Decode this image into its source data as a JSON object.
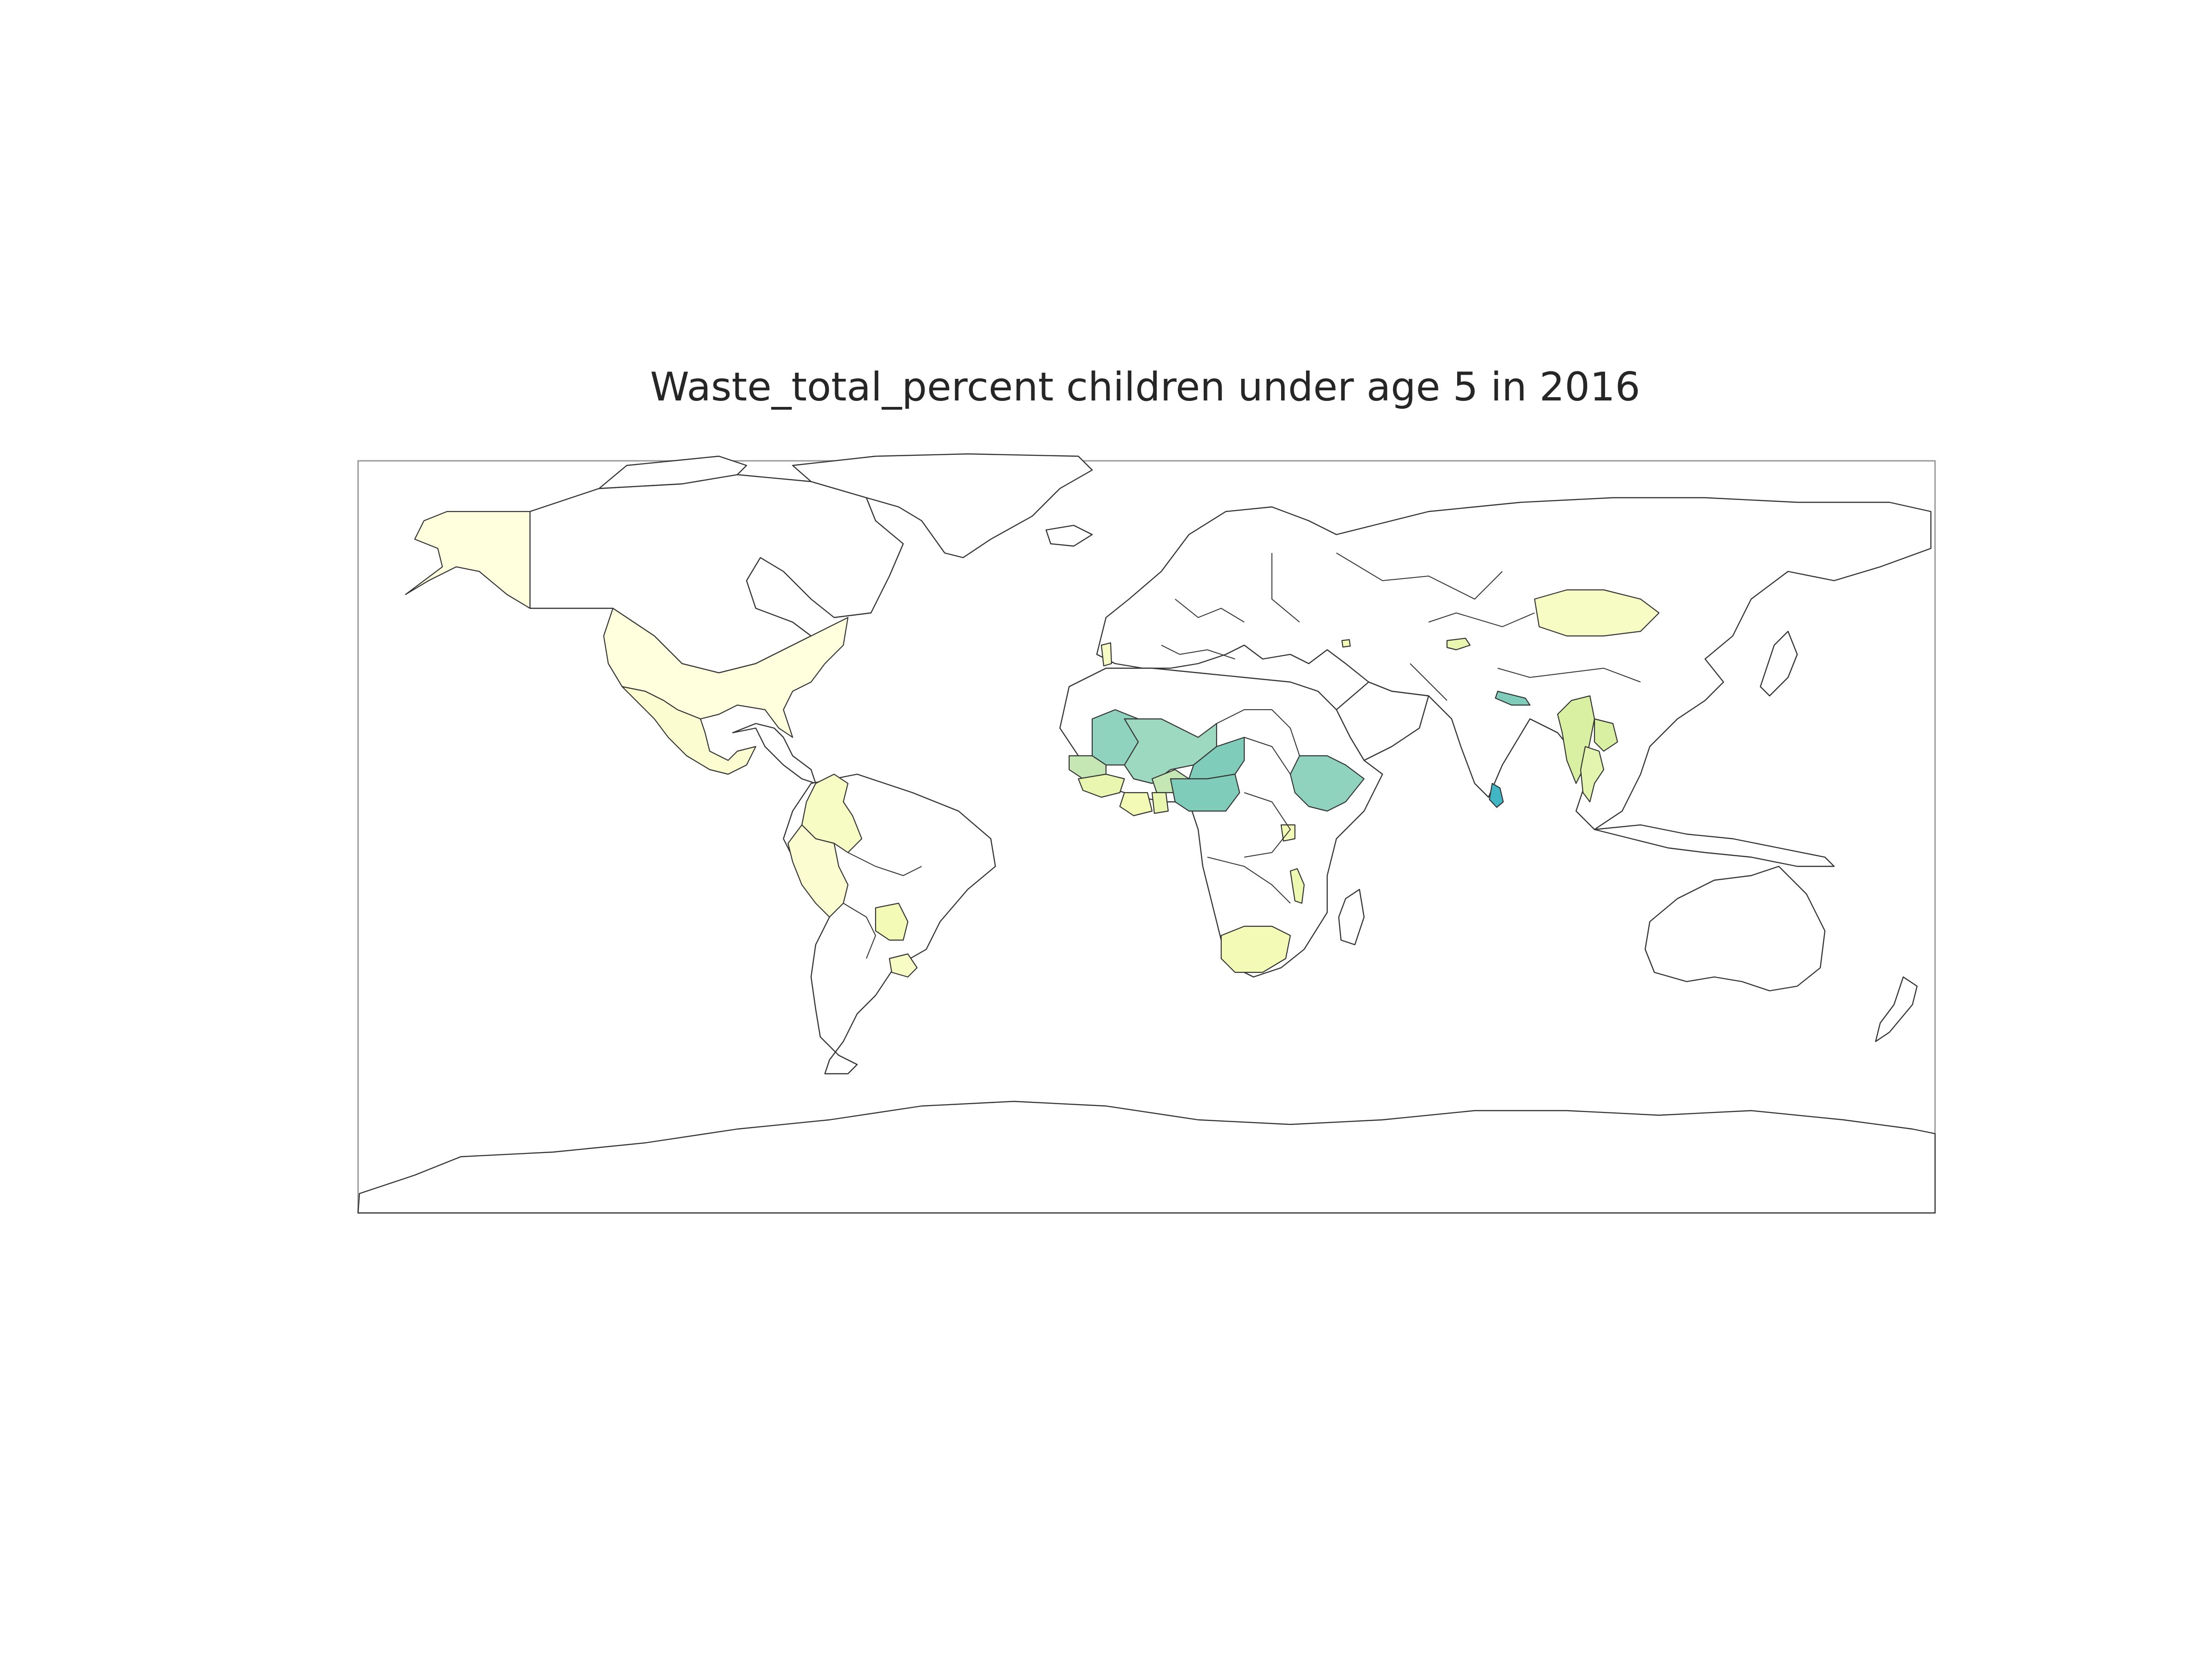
{
  "map": {
    "title": "Waste_total_percent children under age 5 in 2016",
    "colors": {
      "border": "#333333",
      "no_data": "#ffffff",
      "frame": "#999999"
    },
    "regions": [
      {
        "id": "alaska",
        "name": "United States (Alaska)",
        "fill": "#ffffdd"
      },
      {
        "id": "united-states",
        "name": "United States",
        "fill": "#ffffdd"
      },
      {
        "id": "mexico",
        "name": "Mexico",
        "fill": "#fbfdd0"
      },
      {
        "id": "colombia",
        "name": "Colombia",
        "fill": "#f7fcc4"
      },
      {
        "id": "peru",
        "name": "Peru",
        "fill": "#fbfdd0"
      },
      {
        "id": "paraguay",
        "name": "Paraguay",
        "fill": "#f3fab6"
      },
      {
        "id": "uruguay",
        "name": "Uruguay",
        "fill": "#f7fcc4"
      },
      {
        "id": "portugal",
        "name": "Portugal",
        "fill": "#f7fcc4"
      },
      {
        "id": "mali",
        "name": "Mali",
        "fill": "#9dd8c0"
      },
      {
        "id": "mauritania",
        "name": "Mauritania",
        "fill": "#8fd2bd"
      },
      {
        "id": "senegal",
        "name": "Senegal",
        "fill": "#c4e7b4"
      },
      {
        "id": "guinea",
        "name": "Guinea",
        "fill": "#e8f6b0"
      },
      {
        "id": "burkina-faso",
        "name": "Burkina Faso",
        "fill": "#c4e7b4"
      },
      {
        "id": "ghana",
        "name": "Ghana",
        "fill": "#e8f6b0"
      },
      {
        "id": "ivory-coast",
        "name": "Côte d'Ivoire",
        "fill": "#f3fab6"
      },
      {
        "id": "niger",
        "name": "Niger",
        "fill": "#7fccba"
      },
      {
        "id": "nigeria",
        "name": "Nigeria",
        "fill": "#7fccba"
      },
      {
        "id": "ethiopia",
        "name": "Ethiopia",
        "fill": "#8fd2bd"
      },
      {
        "id": "uganda-rwanda",
        "name": "Rwanda",
        "fill": "#f3fab6"
      },
      {
        "id": "malawi",
        "name": "Malawi",
        "fill": "#edf8b1"
      },
      {
        "id": "south-africa",
        "name": "South Africa",
        "fill": "#f3fab6"
      },
      {
        "id": "armenia",
        "name": "Armenia",
        "fill": "#f3fab6"
      },
      {
        "id": "kyrgyzstan",
        "name": "Tajikistan",
        "fill": "#e8f6b0"
      },
      {
        "id": "mongolia",
        "name": "Mongolia",
        "fill": "#f7fcc4"
      },
      {
        "id": "nepal",
        "name": "Nepal",
        "fill": "#7fccba"
      },
      {
        "id": "myanmar",
        "name": "Myanmar",
        "fill": "#d9f0a3"
      },
      {
        "id": "laos",
        "name": "Laos",
        "fill": "#d9f0a3"
      },
      {
        "id": "thailand",
        "name": "Thailand",
        "fill": "#e3f4ae"
      },
      {
        "id": "sri-lanka",
        "name": "Sri Lanka",
        "fill": "#41b6c4"
      }
    ]
  }
}
